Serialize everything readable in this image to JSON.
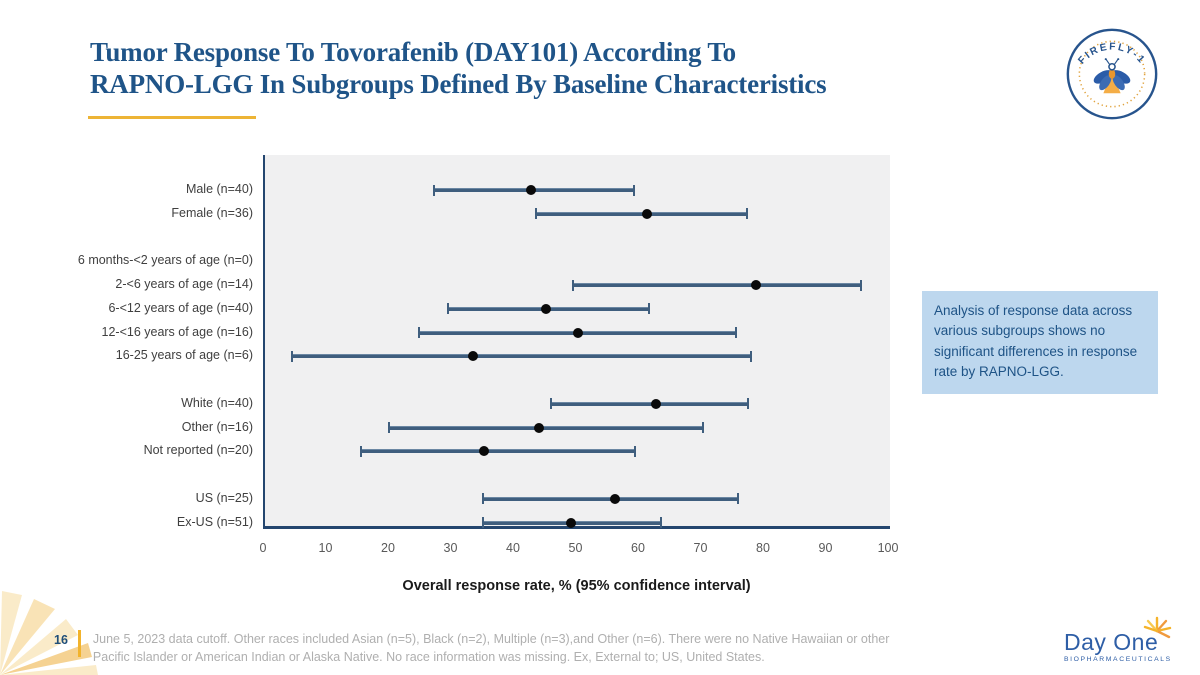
{
  "slide": {
    "title": "Tumor Response To Tovorafenib (DAY101) According To\nRAPNO-LGG In Subgroups Defined By Baseline Characteristics"
  },
  "badge": {
    "label": "FIREFLY-1"
  },
  "annotation": {
    "text": "Analysis of response data across various subgroups shows no significant differences in response rate by RAPNO-LGG.",
    "bg_color": "#BDD7EE",
    "text_color": "#1E5386"
  },
  "chart_data": {
    "type": "scatter",
    "subtype": "forest_plot",
    "xlabel": "Overall response rate, % (95% confidence interval)",
    "xlim": [
      0,
      100
    ],
    "xticks": [
      0,
      10,
      20,
      30,
      40,
      50,
      60,
      70,
      80,
      90,
      100
    ],
    "grid": false,
    "point_color": "#0a0a0a",
    "ci_color": "#3F5E7E",
    "rows": [
      {
        "label": "Male (n=40)",
        "slot": 0,
        "value": 42.5,
        "ci_low": 27.0,
        "ci_high": 59.1
      },
      {
        "label": "Female (n=36)",
        "slot": 1,
        "value": 61.1,
        "ci_low": 43.4,
        "ci_high": 77.1
      },
      {
        "label": "6 months-<2 years of age (n=0)",
        "slot": 3,
        "value": null,
        "ci_low": null,
        "ci_high": null
      },
      {
        "label": "2-<6 years of age (n=14)",
        "slot": 4,
        "value": 78.6,
        "ci_low": 49.2,
        "ci_high": 95.3
      },
      {
        "label": "6-<12 years of age (n=40)",
        "slot": 5,
        "value": 45.0,
        "ci_low": 29.3,
        "ci_high": 61.5
      },
      {
        "label": "12-<16 years of age (n=16)",
        "slot": 6,
        "value": 50.0,
        "ci_low": 24.7,
        "ci_high": 75.3
      },
      {
        "label": "16-25 years of age (n=6)",
        "slot": 7,
        "value": 33.3,
        "ci_low": 4.3,
        "ci_high": 77.7
      },
      {
        "label": "White (n=40)",
        "slot": 9,
        "value": 62.5,
        "ci_low": 45.8,
        "ci_high": 77.3
      },
      {
        "label": "Other (n=16)",
        "slot": 10,
        "value": 43.8,
        "ci_low": 19.8,
        "ci_high": 70.1
      },
      {
        "label": "Not reported (n=20)",
        "slot": 11,
        "value": 35.0,
        "ci_low": 15.4,
        "ci_high": 59.2
      },
      {
        "label": "US (n=25)",
        "slot": 13,
        "value": 56.0,
        "ci_low": 34.9,
        "ci_high": 75.6
      },
      {
        "label": "Ex-US (n=51)",
        "slot": 14,
        "value": 49.0,
        "ci_low": 34.8,
        "ci_high": 63.4
      }
    ]
  },
  "footer": {
    "page_number": "16",
    "footnote": "June 5, 2023 data cutoff. Other races included Asian (n=5), Black (n=2), Multiple (n=3),and Other (n=6). There were no Native Hawaiian or other Pacific Islander or American Indian or Alaska Native. No race information was missing. Ex, External to; US, United States."
  },
  "logo": {
    "name": "Day One",
    "subtext": "BIOPHARMACEUTICALS"
  },
  "colors": {
    "title": "#1F5488",
    "accent_gold": "#EDB435",
    "plot_bg": "#F0F0F1",
    "axis": "#24466F",
    "annotation_bg": "#BDD7EE",
    "footnote_gray": "#AFAFAF",
    "logo_blue": "#2E5EA6"
  }
}
